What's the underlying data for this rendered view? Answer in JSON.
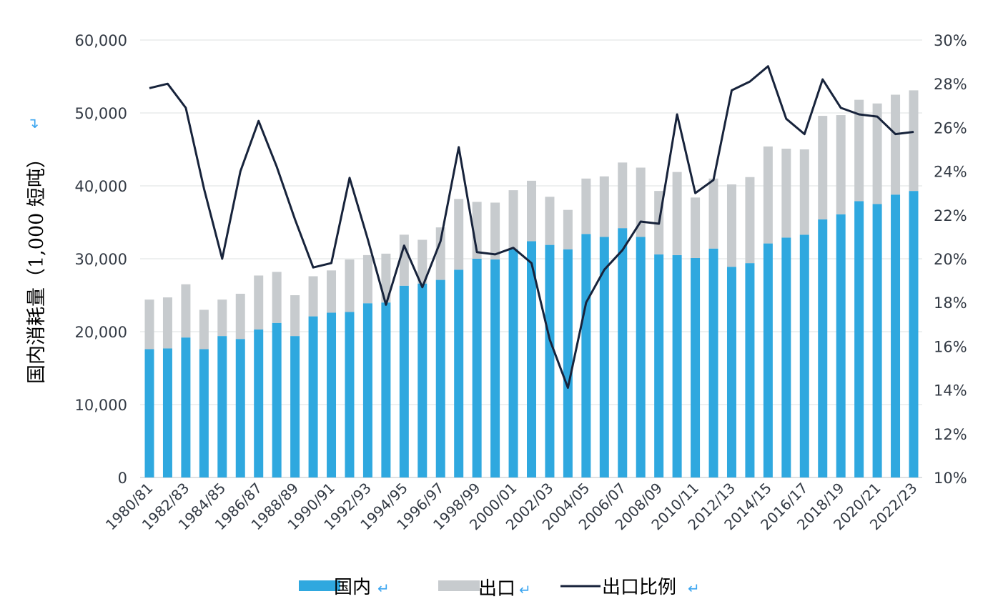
{
  "chart_data": {
    "type": "bar",
    "stacked": true,
    "ylabel": "国内消耗量（1,000 短吨）",
    "ylim": [
      0,
      60000
    ],
    "y_ticks": [
      "0",
      "10,000",
      "20,000",
      "30,000",
      "40,000",
      "50,000",
      "60,000"
    ],
    "y2lim": [
      10,
      30
    ],
    "y2_ticks": [
      "10%",
      "12%",
      "14%",
      "16%",
      "18%",
      "20%",
      "22%",
      "24%",
      "26%",
      "28%",
      "30%"
    ],
    "grid": true,
    "legend_position": "bottom",
    "categories": [
      "1980/81",
      "1981/82",
      "1982/83",
      "1983/84",
      "1984/85",
      "1985/86",
      "1986/87",
      "1987/88",
      "1988/89",
      "1989/90",
      "1990/91",
      "1991/92",
      "1992/93",
      "1993/94",
      "1994/95",
      "1995/96",
      "1996/97",
      "1997/98",
      "1998/99",
      "1999/00",
      "2000/01",
      "2001/02",
      "2002/03",
      "2003/04",
      "2004/05",
      "2005/06",
      "2006/07",
      "2007/08",
      "2008/09",
      "2009/10",
      "2010/11",
      "2011/12",
      "2012/13",
      "2013/14",
      "2014/15",
      "2015/16",
      "2016/17",
      "2017/18",
      "2018/19",
      "2019/20",
      "2020/21",
      "2021/22",
      "2022/23"
    ],
    "x_tick_labels": [
      "1980/81",
      "1982/83",
      "1984/85",
      "1986/87",
      "1988/89",
      "1990/91",
      "1992/93",
      "1994/95",
      "1996/97",
      "1998/99",
      "2000/01",
      "2002/03",
      "2004/05",
      "2006/07",
      "2008/09",
      "2010/11",
      "2012/13",
      "2014/15",
      "2016/17",
      "2018/19",
      "2020/21",
      "2022/23"
    ],
    "series": [
      {
        "name": "国内",
        "type": "bar",
        "color": "#2fa8df",
        "values": [
          17600,
          17700,
          19200,
          17600,
          19400,
          19000,
          20300,
          21200,
          19400,
          22100,
          22600,
          22700,
          23900,
          24000,
          26300,
          26600,
          27100,
          28500,
          30000,
          29900,
          31300,
          32400,
          31900,
          31300,
          33400,
          33000,
          34200,
          33000,
          30600,
          30500,
          30100,
          31400,
          28900,
          29400,
          32100,
          32900,
          33300,
          35400,
          36100,
          37900,
          37500,
          38800,
          39300
        ]
      },
      {
        "name": "出口",
        "type": "bar",
        "color": "#c7cbce",
        "values": [
          6800,
          7000,
          7300,
          5400,
          5000,
          6200,
          7400,
          7000,
          5600,
          5500,
          5800,
          7200,
          6600,
          6700,
          7000,
          6000,
          7200,
          9700,
          7800,
          7800,
          8100,
          8300,
          6600,
          5400,
          7600,
          8300,
          9000,
          9500,
          8700,
          11400,
          8300,
          9600,
          11300,
          11800,
          13300,
          12200,
          11700,
          14200,
          13600,
          13900,
          13800,
          13700,
          13800
        ]
      },
      {
        "name": "出口比例",
        "type": "line",
        "axis": "right",
        "unit": "%",
        "color": "#17233b",
        "values": [
          27.8,
          28.0,
          26.9,
          23.2,
          20.0,
          24.0,
          26.3,
          24.2,
          21.8,
          19.6,
          19.8,
          23.7,
          20.9,
          17.9,
          20.6,
          18.7,
          20.8,
          25.1,
          20.3,
          20.2,
          20.5,
          19.8,
          16.3,
          14.1,
          18.0,
          19.5,
          20.4,
          21.7,
          21.6,
          26.6,
          23.0,
          23.6,
          27.7,
          28.1,
          28.8,
          26.4,
          25.7,
          28.2,
          26.9,
          26.6,
          26.5,
          25.7,
          25.8
        ]
      }
    ]
  },
  "legend": {
    "items": [
      {
        "label": "国内",
        "mark": "↵"
      },
      {
        "label": "出口",
        "mark": "↵"
      },
      {
        "label": "出口比例",
        "mark": "↵"
      }
    ]
  },
  "ylabel_mark": "↵"
}
